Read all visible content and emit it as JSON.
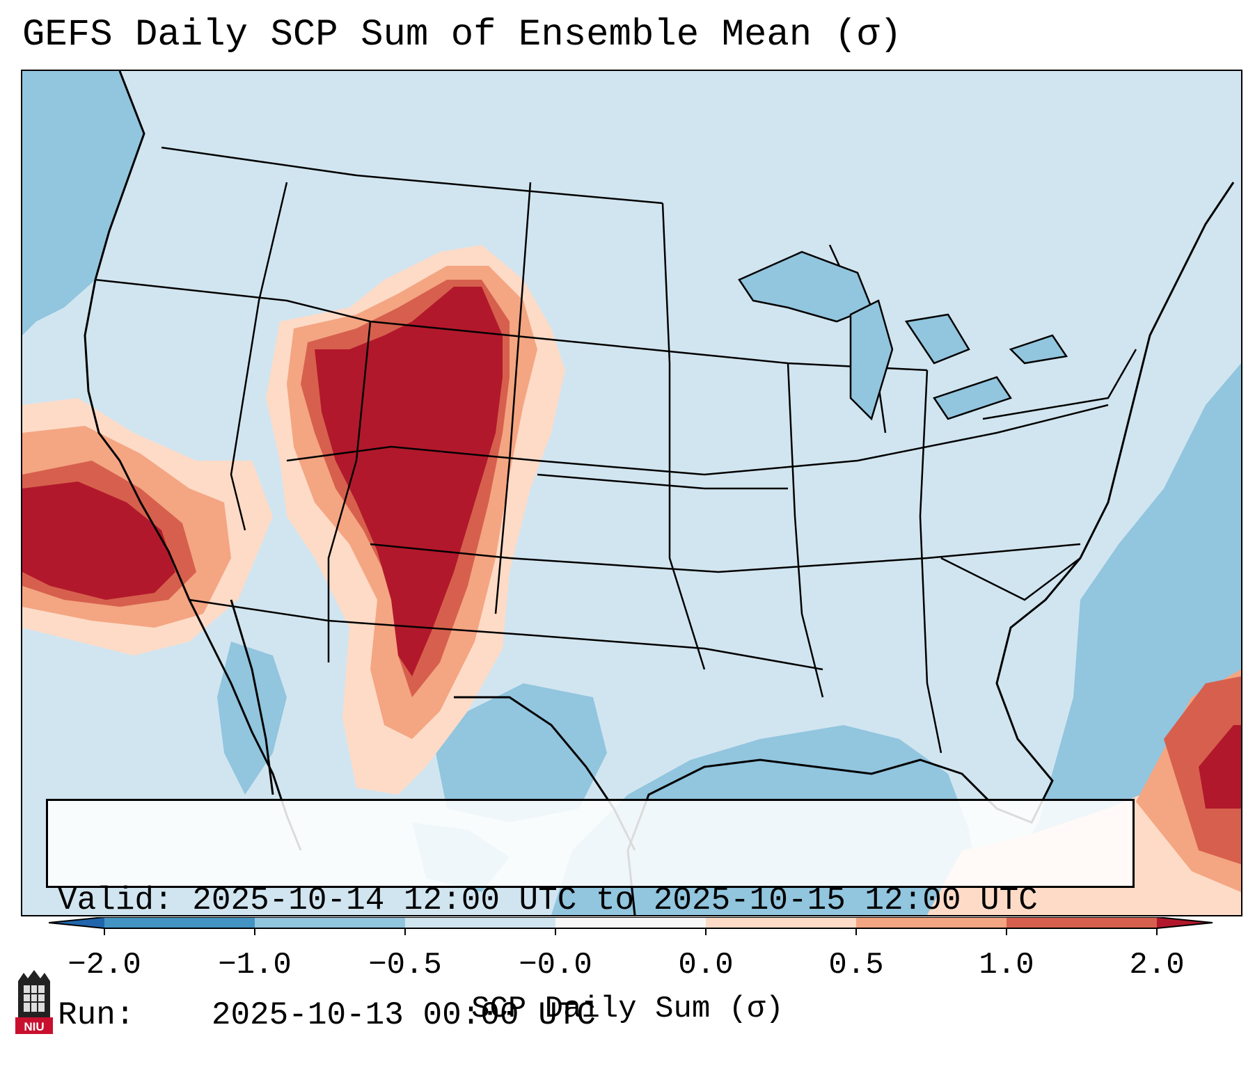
{
  "title": "GEFS Daily SCP Sum of Ensemble Mean (σ)",
  "info": {
    "valid_label": "Valid:",
    "valid_value": "2025-10-14 12:00 UTC to 2025-10-15 12:00 UTC",
    "run_label": "Run:",
    "run_value": "2025-10-13 00:00 UTC"
  },
  "colorbar": {
    "label": "SCP Daily Sum (σ)",
    "ticks": [
      "−2.0",
      "−1.0",
      "−0.5",
      "−0.0",
      "0.0",
      "0.5",
      "1.0",
      "2.0"
    ],
    "colors": {
      "below_min": "#2166ac",
      "bin_m2_m1": "#4393c3",
      "bin_m1_m05": "#92c5de",
      "bin_m05_0": "#d1e5f0",
      "bin_0_0": "#f7f7f7",
      "bin_0_05": "#fddbc7",
      "bin_05_1": "#f4a582",
      "bin_1_2": "#d6604d",
      "above_max": "#b2182b"
    }
  },
  "logo": {
    "text": "NIU"
  }
}
